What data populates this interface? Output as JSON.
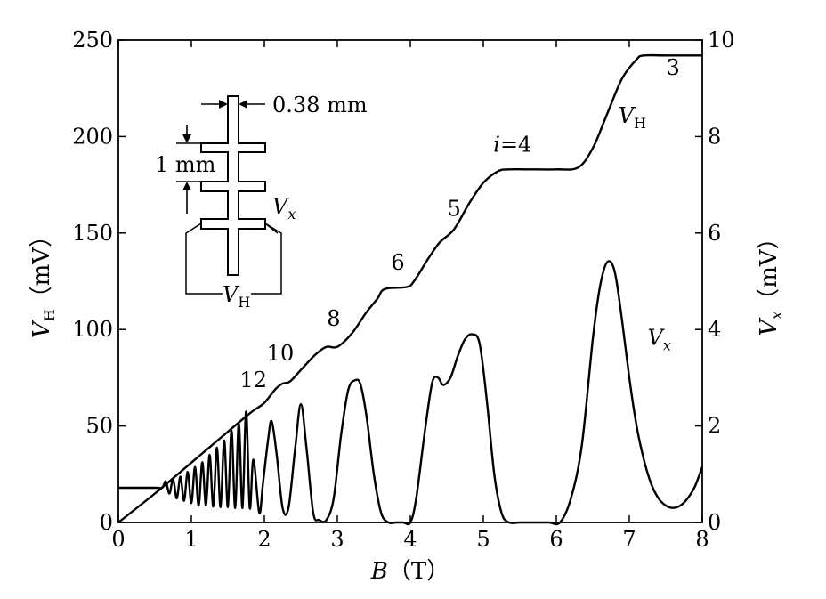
{
  "chart_data": {
    "type": "line",
    "title": "",
    "xlabel": {
      "symbol": "B",
      "unit": "（T）"
    },
    "ylabel_left": {
      "symbol": "V",
      "sub": "H",
      "unit": "（mV）"
    },
    "ylabel_right": {
      "symbol": "V",
      "sub": "x",
      "unit": "（mV）"
    },
    "xlim": [
      0,
      8
    ],
    "ylim_left": [
      0,
      250
    ],
    "ylim_right": [
      0,
      10
    ],
    "x_ticks": [
      "0",
      "1",
      "2",
      "3",
      "4",
      "5",
      "6",
      "7",
      "8"
    ],
    "y_left_ticks": [
      "0",
      "50",
      "100",
      "150",
      "200",
      "250"
    ],
    "y_right_ticks": [
      "0",
      "2",
      "4",
      "6",
      "8",
      "10"
    ],
    "grid": false,
    "series": [
      {
        "name": "V_H",
        "label_symbol": "V",
        "label_sub": "H",
        "axis": "left",
        "x": [
          0,
          0.5,
          1.0,
          1.5,
          1.75,
          1.85,
          2.0,
          2.15,
          2.25,
          2.35,
          2.5,
          2.7,
          2.85,
          3.0,
          3.2,
          3.4,
          3.55,
          3.65,
          3.95,
          4.05,
          4.25,
          4.4,
          4.6,
          4.8,
          5.0,
          5.2,
          5.35,
          5.6,
          6.0,
          6.3,
          6.5,
          6.7,
          6.9,
          7.1,
          7.2,
          7.5,
          8.0
        ],
        "y": [
          0,
          15,
          31,
          47,
          55,
          58,
          62,
          69,
          72,
          73,
          79,
          87,
          91,
          91,
          98,
          109,
          116,
          121,
          122,
          125,
          137,
          145,
          152,
          165,
          176,
          182,
          183,
          183,
          183,
          184,
          194,
          212,
          230,
          240,
          242,
          242,
          242
        ]
      },
      {
        "name": "V_x",
        "label_symbol": "V",
        "label_sub": "x",
        "axis": "right",
        "x": [
          0,
          0.5,
          0.6,
          0.65,
          0.7,
          0.75,
          0.8,
          0.85,
          0.9,
          0.95,
          1.0,
          1.05,
          1.1,
          1.15,
          1.2,
          1.25,
          1.3,
          1.35,
          1.4,
          1.45,
          1.5,
          1.55,
          1.6,
          1.65,
          1.7,
          1.75,
          1.8,
          1.85,
          1.93,
          1.98,
          2.05,
          2.1,
          2.17,
          2.25,
          2.33,
          2.42,
          2.5,
          2.58,
          2.67,
          2.75,
          2.85,
          2.95,
          3.05,
          3.15,
          3.25,
          3.32,
          3.4,
          3.5,
          3.6,
          3.7,
          3.8,
          3.9,
          4.0,
          4.08,
          4.2,
          4.3,
          4.38,
          4.45,
          4.55,
          4.65,
          4.75,
          4.85,
          4.95,
          5.05,
          5.15,
          5.25,
          5.35,
          5.5,
          5.7,
          5.9,
          6.05,
          6.2,
          6.35,
          6.5,
          6.6,
          6.7,
          6.8,
          6.9,
          7.0,
          7.1,
          7.2,
          7.3,
          7.4,
          7.5,
          7.6,
          7.7,
          7.8,
          7.9,
          8.0
        ],
        "y": [
          0.72,
          0.72,
          0.72,
          0.85,
          0.6,
          0.9,
          0.5,
          0.95,
          0.45,
          1.05,
          0.4,
          1.15,
          0.35,
          1.25,
          0.35,
          1.4,
          0.33,
          1.55,
          0.32,
          1.7,
          0.32,
          1.9,
          0.3,
          2.05,
          0.3,
          2.3,
          0.3,
          1.3,
          0.2,
          0.8,
          1.7,
          2.1,
          1.4,
          0.3,
          0.3,
          1.5,
          2.45,
          1.5,
          0.2,
          0.05,
          0.05,
          0.5,
          1.8,
          2.75,
          2.95,
          2.85,
          2.2,
          1.0,
          0.2,
          0.0,
          0.0,
          0.0,
          0.0,
          0.5,
          1.9,
          2.9,
          3.0,
          2.85,
          3.0,
          3.45,
          3.8,
          3.9,
          3.7,
          2.5,
          1.0,
          0.2,
          0.0,
          0.0,
          0.0,
          0.0,
          0.0,
          0.5,
          1.6,
          3.8,
          4.9,
          5.4,
          5.2,
          4.2,
          3.0,
          2.0,
          1.3,
          0.8,
          0.5,
          0.35,
          0.3,
          0.35,
          0.5,
          0.75,
          1.15
        ]
      }
    ],
    "annotations": [
      {
        "label": "12",
        "x": 1.85,
        "y_left": 70
      },
      {
        "label": "10",
        "x": 2.22,
        "y_left": 84
      },
      {
        "label": "8",
        "x": 2.95,
        "y_left": 102
      },
      {
        "label": "6",
        "x": 3.83,
        "y_left": 131
      },
      {
        "label": "5",
        "x": 4.6,
        "y_left": 159
      },
      {
        "label": "i=4",
        "x": 5.4,
        "y_left": 192
      },
      {
        "label": "3",
        "x": 7.6,
        "y_left": 232
      }
    ],
    "series_labels": {
      "V_H": {
        "x": 6.85,
        "y_left": 207
      },
      "V_x": {
        "x": 7.25,
        "y_left": 92
      }
    },
    "inset": {
      "width_label": "0.38 mm",
      "spacing_label": "1 mm",
      "vx_label": {
        "symbol": "V",
        "sub": "x"
      },
      "vh_label": {
        "symbol": "V",
        "sub": "H"
      }
    }
  }
}
